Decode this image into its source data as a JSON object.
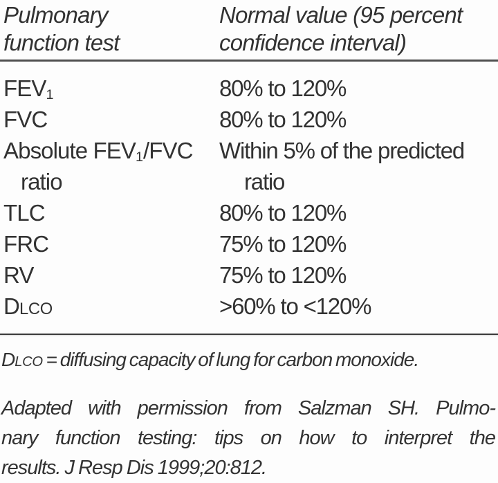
{
  "table": {
    "header": {
      "col1_line1": "Pulmonary",
      "col1_line2": "function test",
      "col2_line1": "Normal value (95 percent",
      "col2_line2": "confidence interval)"
    },
    "rows": [
      {
        "t1": "FEV",
        "sub": "1",
        "v1": "80% to 120%"
      },
      {
        "t1": "FVC",
        "v1": "80% to 120%"
      },
      {
        "t1": "Absolute FEV",
        "sub": "1",
        "t2": "/FVC",
        "line2": "ratio",
        "v1": "Within 5% of the predicted",
        "v2": "ratio"
      },
      {
        "t1": "TLC",
        "v1": "80% to 120%"
      },
      {
        "t1": "FRC",
        "v1": "75% to 120%"
      },
      {
        "t1": "RV",
        "v1": "75% to 120%"
      },
      {
        "t1": "D",
        "sc": "LCO",
        "v1": ">60% to <120%"
      }
    ]
  },
  "footnotes": {
    "definition": {
      "d": "D",
      "sc": "LCO",
      "rest": " = diffusing capacity of lung for carbon monoxide."
    },
    "attribution_lines": [
      "Adapted with permission from Salzman SH. Pulmo-",
      "nary function testing: tips on how to interpret the",
      "results. J Resp Dis 1999;20:812."
    ]
  },
  "colors": {
    "text": "#323232",
    "rule_heavy": "#4f4f4f",
    "rule_light": "#3a3a3a",
    "background": "#fdfdfd"
  }
}
